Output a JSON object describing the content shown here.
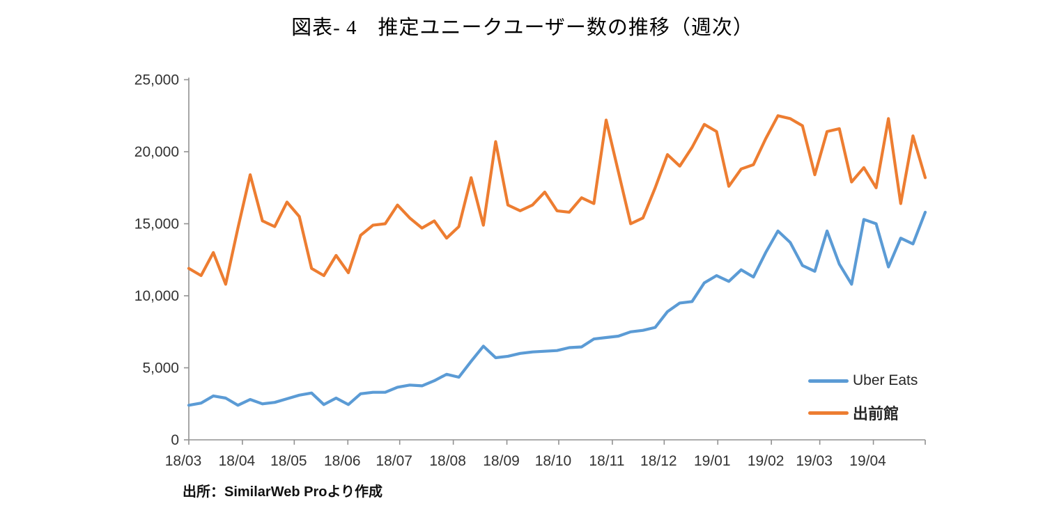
{
  "title": "図表- 4　推定ユニークユーザー数の推移（週次）",
  "source_note": "出所：SimilarWeb Proより作成",
  "colors": {
    "uber_eats": "#5B9BD5",
    "demaekan": "#ED7D31",
    "axis": "#919191",
    "tick_text": "#333333",
    "background": "#ffffff"
  },
  "chart_data": {
    "type": "line",
    "title": "図表- 4　推定ユニークユーザー数の推移（週次）",
    "x_unit": "week",
    "x_tick_labels": [
      "18/03",
      "18/04",
      "18/05",
      "18/06",
      "18/07",
      "18/08",
      "18/09",
      "18/10",
      "18/11",
      "18/12",
      "19/01",
      "19/02",
      "19/03",
      "19/04"
    ],
    "y_tick_labels": [
      "0",
      "5,000",
      "10,000",
      "15,000",
      "20,000",
      "25,000"
    ],
    "ylim": [
      0,
      25000
    ],
    "grid": false,
    "legend_position": "inside-bottom-right",
    "series": [
      {
        "name": "Uber Eats",
        "color_key": "uber_eats",
        "values": [
          2400,
          2550,
          3050,
          2900,
          2400,
          2800,
          2500,
          2600,
          2850,
          3100,
          3250,
          2450,
          2900,
          2450,
          3200,
          3300,
          3300,
          3650,
          3800,
          3750,
          4100,
          4550,
          4350,
          5450,
          6500,
          5700,
          5800,
          6000,
          6100,
          6150,
          6200,
          6400,
          6450,
          7000,
          7100,
          7200,
          7500,
          7600,
          7800,
          8900,
          9500,
          9600,
          10900,
          11400,
          11000,
          11800,
          11300,
          13000,
          14500,
          13700,
          12100,
          11700,
          14500,
          12200,
          10800,
          15300,
          15000,
          12000,
          14000,
          13600,
          15800
        ]
      },
      {
        "name": "出前館",
        "color_key": "demaekan",
        "values": [
          11900,
          11400,
          13000,
          10800,
          14700,
          18400,
          15200,
          14800,
          16500,
          15500,
          11900,
          11400,
          12800,
          11600,
          14200,
          14900,
          15000,
          16300,
          15400,
          14700,
          15200,
          14000,
          14800,
          18200,
          14900,
          20700,
          16300,
          15900,
          16300,
          17200,
          15900,
          15800,
          16800,
          16400,
          22200,
          18600,
          15000,
          15400,
          17500,
          19800,
          19000,
          20300,
          21900,
          21400,
          17600,
          18800,
          19100,
          20900,
          22500,
          22300,
          21800,
          18400,
          21400,
          21600,
          17900,
          18900,
          17500,
          22300,
          16400,
          21100,
          18200
        ]
      }
    ]
  }
}
